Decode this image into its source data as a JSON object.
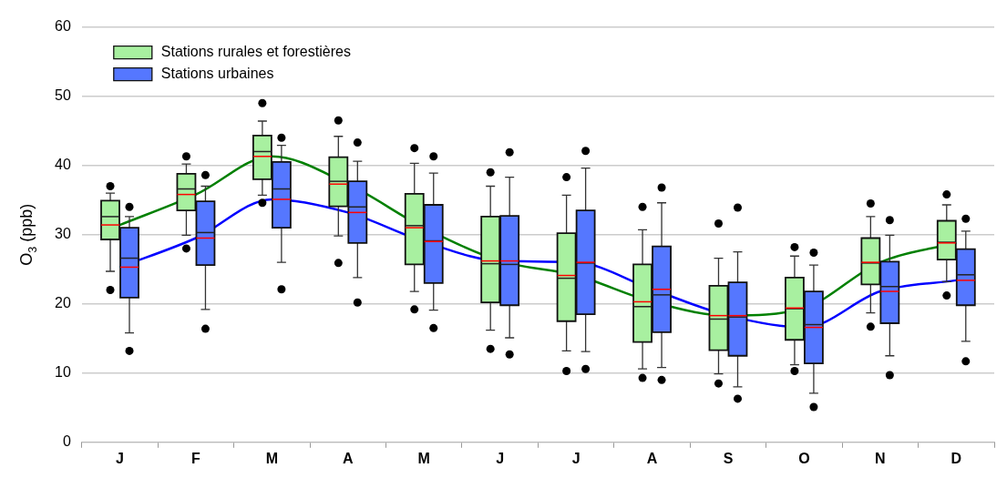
{
  "chart_data": {
    "type": "box",
    "ylabel": "O$_{3}$ (ppb)",
    "categories": [
      "J",
      "F",
      "M",
      "A",
      "M",
      "J",
      "J",
      "A",
      "S",
      "O",
      "N",
      "D"
    ],
    "ylim": [
      0,
      60
    ],
    "yticks": [
      0,
      10,
      20,
      30,
      40,
      50,
      60
    ],
    "grid": "y",
    "legend": "top left",
    "series": [
      {
        "name": "Stations rurales et forestières",
        "color": "#a8f0a0",
        "boxes": [
          {
            "low": 24.7,
            "q1": 29.3,
            "median": 32.6,
            "q3": 34.9,
            "high": 36.0,
            "mean": 31.4,
            "outliers": [
              37.0,
              22.0
            ]
          },
          {
            "low": 29.9,
            "q1": 33.5,
            "median": 36.6,
            "q3": 38.8,
            "high": 40.2,
            "mean": 35.8,
            "outliers": [
              41.3,
              28.0
            ]
          },
          {
            "low": 35.7,
            "q1": 38.0,
            "median": 42.0,
            "q3": 44.3,
            "high": 46.4,
            "mean": 41.3,
            "outliers": [
              49.0,
              34.6
            ]
          },
          {
            "low": 29.8,
            "q1": 34.1,
            "median": 37.7,
            "q3": 41.2,
            "high": 44.2,
            "mean": 37.3,
            "outliers": [
              46.5,
              25.9
            ]
          },
          {
            "low": 21.8,
            "q1": 25.7,
            "median": 31.3,
            "q3": 35.9,
            "high": 40.3,
            "mean": 31.0,
            "outliers": [
              42.5,
              19.2
            ]
          },
          {
            "low": 16.2,
            "q1": 20.2,
            "median": 25.8,
            "q3": 32.6,
            "high": 37.0,
            "mean": 26.2,
            "outliers": [
              39.0,
              13.5
            ]
          },
          {
            "low": 13.2,
            "q1": 17.5,
            "median": 23.7,
            "q3": 30.2,
            "high": 35.7,
            "mean": 24.1,
            "outliers": [
              38.3,
              10.3
            ]
          },
          {
            "low": 10.6,
            "q1": 14.5,
            "median": 19.6,
            "q3": 25.7,
            "high": 30.7,
            "mean": 20.3,
            "outliers": [
              34.0,
              9.3
            ]
          },
          {
            "low": 9.9,
            "q1": 13.3,
            "median": 17.8,
            "q3": 22.6,
            "high": 26.6,
            "mean": 18.3,
            "outliers": [
              31.6,
              8.5
            ]
          },
          {
            "low": 11.2,
            "q1": 14.8,
            "median": 19.3,
            "q3": 23.8,
            "high": 26.9,
            "mean": 19.4,
            "outliers": [
              28.2,
              10.3
            ]
          },
          {
            "low": 18.7,
            "q1": 22.8,
            "median": 25.9,
            "q3": 29.5,
            "high": 32.6,
            "mean": 26.0,
            "outliers": [
              34.5,
              16.7
            ]
          },
          {
            "low": 23.2,
            "q1": 26.4,
            "median": 28.9,
            "q3": 32.0,
            "high": 34.3,
            "mean": 28.8,
            "outliers": [
              35.8,
              21.2
            ]
          }
        ]
      },
      {
        "name": "Stations urbaines",
        "color": "#5577ff",
        "boxes": [
          {
            "low": 15.8,
            "q1": 20.9,
            "median": 26.6,
            "q3": 31.0,
            "high": 32.6,
            "mean": 25.3,
            "outliers": [
              34.0,
              13.2
            ]
          },
          {
            "low": 19.2,
            "q1": 25.6,
            "median": 30.3,
            "q3": 34.8,
            "high": 37.0,
            "mean": 29.5,
            "outliers": [
              38.6,
              16.4
            ]
          },
          {
            "low": 26.0,
            "q1": 31.0,
            "median": 36.6,
            "q3": 40.5,
            "high": 42.9,
            "mean": 35.1,
            "outliers": [
              44.0,
              22.1
            ]
          },
          {
            "low": 23.8,
            "q1": 28.8,
            "median": 34.0,
            "q3": 37.7,
            "high": 40.6,
            "mean": 33.2,
            "outliers": [
              43.3,
              20.2
            ]
          },
          {
            "low": 19.1,
            "q1": 23.0,
            "median": 29.1,
            "q3": 34.3,
            "high": 38.9,
            "mean": 29.0,
            "outliers": [
              41.3,
              16.5
            ]
          },
          {
            "low": 15.1,
            "q1": 19.8,
            "median": 25.7,
            "q3": 32.7,
            "high": 38.3,
            "mean": 26.2,
            "outliers": [
              41.9,
              12.7
            ]
          },
          {
            "low": 13.1,
            "q1": 18.5,
            "median": 25.9,
            "q3": 33.5,
            "high": 39.6,
            "mean": 26.0,
            "outliers": [
              42.1,
              10.6
            ]
          },
          {
            "low": 10.8,
            "q1": 15.9,
            "median": 21.3,
            "q3": 28.3,
            "high": 34.6,
            "mean": 22.1,
            "outliers": [
              36.8,
              9.0
            ]
          },
          {
            "low": 8.0,
            "q1": 12.5,
            "median": 18.1,
            "q3": 23.1,
            "high": 27.5,
            "mean": 18.3,
            "outliers": [
              33.9,
              6.3
            ]
          },
          {
            "low": 7.1,
            "q1": 11.4,
            "median": 17.0,
            "q3": 21.8,
            "high": 25.6,
            "mean": 16.6,
            "outliers": [
              27.4,
              5.1
            ]
          },
          {
            "low": 12.5,
            "q1": 17.2,
            "median": 22.5,
            "q3": 26.1,
            "high": 29.9,
            "mean": 21.8,
            "outliers": [
              32.1,
              9.7
            ]
          },
          {
            "low": 14.6,
            "q1": 19.8,
            "median": 24.2,
            "q3": 27.9,
            "high": 30.5,
            "mean": 23.4,
            "outliers": [
              32.3,
              11.7
            ]
          }
        ]
      },
      {
        "type": "line",
        "color": "#008000",
        "values": [
          31.4,
          35.8,
          41.3,
          37.3,
          31.0,
          26.2,
          24.1,
          20.3,
          18.3,
          19.4,
          26.0,
          28.8
        ]
      },
      {
        "type": "line",
        "color": "#0000ff",
        "values": [
          25.3,
          29.5,
          35.1,
          33.2,
          29.0,
          26.2,
          26.0,
          22.1,
          18.3,
          16.6,
          21.8,
          23.4
        ]
      }
    ]
  }
}
